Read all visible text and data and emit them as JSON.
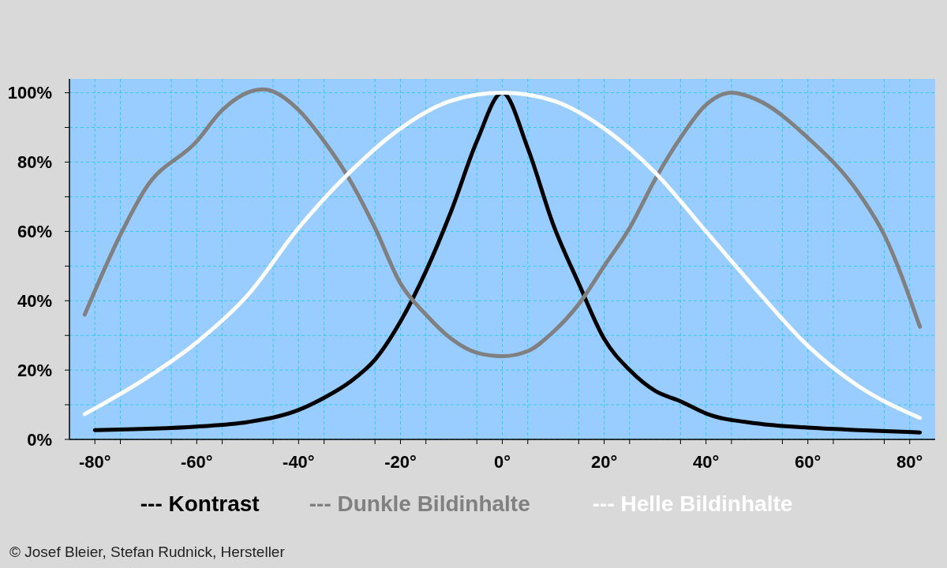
{
  "chart_data": {
    "type": "line",
    "xlim": [
      -85,
      85
    ],
    "xticks": [
      {
        "value": -80,
        "label": "-80°"
      },
      {
        "value": -75,
        "label": null
      },
      {
        "value": -65,
        "label": null
      },
      {
        "value": -60,
        "label": "-60°"
      },
      {
        "value": -55,
        "label": null
      },
      {
        "value": -45,
        "label": null
      },
      {
        "value": -40,
        "label": "-40°"
      },
      {
        "value": -35,
        "label": null
      },
      {
        "value": -25,
        "label": null
      },
      {
        "value": -20,
        "label": "-20°"
      },
      {
        "value": -15,
        "label": null
      },
      {
        "value": -5,
        "label": null
      },
      {
        "value": 0,
        "label": "0°"
      },
      {
        "value": 5,
        "label": null
      },
      {
        "value": 15,
        "label": null
      },
      {
        "value": 20,
        "label": "20°"
      },
      {
        "value": 25,
        "label": null
      },
      {
        "value": 35,
        "label": null
      },
      {
        "value": 40,
        "label": "40°"
      },
      {
        "value": 45,
        "label": null
      },
      {
        "value": 55,
        "label": null
      },
      {
        "value": 60,
        "label": "60°"
      },
      {
        "value": 65,
        "label": null
      },
      {
        "value": 75,
        "label": null
      },
      {
        "value": 80,
        "label": "80°"
      }
    ],
    "ylim": [
      0,
      104
    ],
    "yticks": [
      {
        "value": 0,
        "label": "0%"
      },
      {
        "value": 10,
        "label": null
      },
      {
        "value": 20,
        "label": "20%"
      },
      {
        "value": 30,
        "label": null
      },
      {
        "value": 40,
        "label": "40%"
      },
      {
        "value": 50,
        "label": null
      },
      {
        "value": 60,
        "label": "60%"
      },
      {
        "value": 70,
        "label": null
      },
      {
        "value": 80,
        "label": "80%"
      },
      {
        "value": 90,
        "label": null
      },
      {
        "value": 100,
        "label": "100%"
      }
    ],
    "grid": true,
    "legend": "bottom",
    "line_style": "solid",
    "marker": "none",
    "annotations": [
      "© Josef Bleier, Stefan Rudnick, Hersteller"
    ],
    "series": [
      {
        "name": "--- Kontrast",
        "color": "#000000",
        "x": [
          -80,
          -60,
          -50,
          -40,
          -35,
          -30,
          -25,
          -20,
          -15,
          -10,
          -5,
          0,
          5,
          10,
          15,
          20,
          25,
          30,
          35,
          40,
          50,
          60,
          70,
          82
        ],
        "values": [
          2.7,
          3.7,
          5,
          8.5,
          12,
          16.5,
          23,
          34,
          48.5,
          66,
          86,
          100,
          84,
          62,
          45,
          29,
          20,
          14,
          11,
          7.5,
          4.6,
          3.4,
          2.7,
          2
        ]
      },
      {
        "name": "--- Dunkle Bildinhalte",
        "color": "#808080",
        "x": [
          -82,
          -75,
          -70,
          -60,
          -55,
          -47,
          -40,
          -35,
          -30,
          -25,
          -20,
          -15,
          -10,
          -5,
          0,
          5,
          10,
          15,
          20,
          25,
          30,
          35,
          40,
          45,
          50,
          60,
          70,
          75,
          82
        ],
        "values": [
          36,
          59,
          72.5,
          86,
          95,
          101,
          95,
          86,
          75,
          61,
          45,
          36,
          29,
          25,
          24,
          25.5,
          31,
          39,
          50,
          61,
          75,
          87,
          96.5,
          100,
          98,
          87,
          71,
          59,
          32.5
        ]
      },
      {
        "name": "--- Helle Bildinhalte",
        "color": "#ffffff",
        "x": [
          -82,
          -70,
          -60,
          -50,
          -40,
          -30,
          -20,
          -10,
          0,
          10,
          20,
          30,
          40,
          50,
          60,
          70,
          82
        ],
        "values": [
          7.3,
          17.6,
          28,
          41.6,
          61,
          77,
          89.7,
          97.7,
          100,
          97.7,
          89.7,
          77,
          60,
          43,
          27,
          15.3,
          6.2
        ]
      }
    ]
  }
}
